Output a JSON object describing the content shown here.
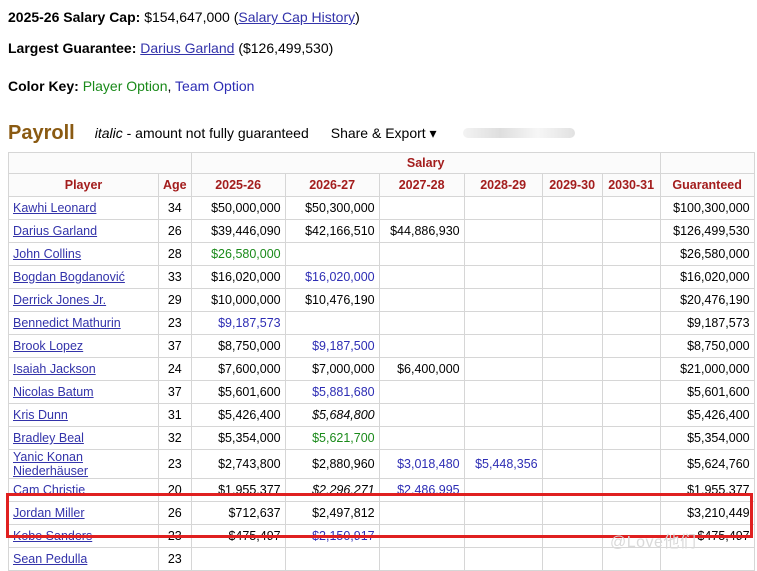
{
  "header": {
    "cap_label": "2025-26 Salary Cap:",
    "cap_value": "$154,647,000",
    "cap_open": "(",
    "cap_link": "Salary Cap History",
    "cap_close": ")",
    "largest_label": "Largest Guarantee:",
    "largest_player": "Darius Garland",
    "largest_value": "($126,499,530)",
    "color_key_label": "Color Key:",
    "player_option": "Player Option",
    "comma": ",",
    "team_option": "Team Option"
  },
  "payroll": {
    "title": "Payroll",
    "italic_word": "italic",
    "italic_rest": " - amount not fully guaranteed",
    "share_export": "Share & Export ▾"
  },
  "table": {
    "group_header": "Salary",
    "columns": [
      "Player",
      "Age",
      "2025-26",
      "2026-27",
      "2027-28",
      "2028-29",
      "2029-30",
      "2030-31",
      "Guaranteed"
    ],
    "rows": [
      {
        "player": "Kawhi Leonard",
        "age": "34",
        "y1": "$50,000,000",
        "y2": "$50,300,000",
        "y3": "",
        "y4": "",
        "guaranteed": "$100,300,000"
      },
      {
        "player": "Darius Garland",
        "age": "26",
        "y1": "$39,446,090",
        "y2": "$42,166,510",
        "y3": "$44,886,930",
        "y4": "",
        "guaranteed": "$126,499,530"
      },
      {
        "player": "John Collins",
        "age": "28",
        "y1": "$26,580,000",
        "y2": "",
        "y3": "",
        "y4": "",
        "guaranteed": "$26,580,000"
      },
      {
        "player": "Bogdan Bogdanović",
        "age": "33",
        "y1": "$16,020,000",
        "y2": "$16,020,000",
        "y3": "",
        "y4": "",
        "guaranteed": "$16,020,000"
      },
      {
        "player": "Derrick Jones Jr.",
        "age": "29",
        "y1": "$10,000,000",
        "y2": "$10,476,190",
        "y3": "",
        "y4": "",
        "guaranteed": "$20,476,190"
      },
      {
        "player": "Bennedict Mathurin",
        "age": "23",
        "y1": "$9,187,573",
        "y2": "",
        "y3": "",
        "y4": "",
        "guaranteed": "$9,187,573"
      },
      {
        "player": "Brook Lopez",
        "age": "37",
        "y1": "$8,750,000",
        "y2": "$9,187,500",
        "y3": "",
        "y4": "",
        "guaranteed": "$8,750,000"
      },
      {
        "player": "Isaiah Jackson",
        "age": "24",
        "y1": "$7,600,000",
        "y2": "$7,000,000",
        "y3": "$6,400,000",
        "y4": "",
        "guaranteed": "$21,000,000"
      },
      {
        "player": "Nicolas Batum",
        "age": "37",
        "y1": "$5,601,600",
        "y2": "$5,881,680",
        "y3": "",
        "y4": "",
        "guaranteed": "$5,601,600"
      },
      {
        "player": "Kris Dunn",
        "age": "31",
        "y1": "$5,426,400",
        "y2": "$5,684,800",
        "y3": "",
        "y4": "",
        "guaranteed": "$5,426,400"
      },
      {
        "player": "Bradley Beal",
        "age": "32",
        "y1": "$5,354,000",
        "y2": "$5,621,700",
        "y3": "",
        "y4": "",
        "guaranteed": "$5,354,000"
      },
      {
        "player": "Yanic Konan Niederhäuser",
        "age": "23",
        "y1": "$2,743,800",
        "y2": "$2,880,960",
        "y3": "$3,018,480",
        "y4": "$5,448,356",
        "guaranteed": "$5,624,760"
      },
      {
        "player": "Cam Christie",
        "age": "20",
        "y1": "$1,955,377",
        "y2": "$2,296,271",
        "y3": "$2,486,995",
        "y4": "",
        "guaranteed": "$1,955,377"
      },
      {
        "player": "Jordan Miller",
        "age": "26",
        "y1": "$712,637",
        "y2": "$2,497,812",
        "y3": "",
        "y4": "",
        "guaranteed": "$3,210,449"
      },
      {
        "player": "Kobe Sanders",
        "age": "23",
        "y1": "$475,497",
        "y2": "$2,150,917",
        "y3": "",
        "y4": "",
        "guaranteed": "$475,497"
      },
      {
        "player": "Sean Pedulla",
        "age": "23",
        "y1": "",
        "y2": "",
        "y3": "",
        "y4": "",
        "guaranteed": ""
      }
    ]
  },
  "styles": {
    "y1": [
      "",
      "",
      "green",
      "",
      "",
      "blue",
      "",
      "",
      "",
      "",
      "",
      "",
      "",
      "",
      "",
      ""
    ],
    "y2": [
      "",
      "",
      "",
      "blue",
      "",
      "",
      "blue",
      "",
      "blue",
      "it",
      "green",
      "",
      "it",
      "",
      "blue",
      ""
    ],
    "y3": [
      "",
      "",
      "",
      "",
      "",
      "",
      "",
      "",
      "",
      "",
      "",
      "blue",
      "blue",
      "",
      "",
      ""
    ],
    "y4": [
      "",
      "",
      "",
      "",
      "",
      "",
      "",
      "",
      "",
      "",
      "",
      "blue",
      "",
      "",
      "",
      ""
    ]
  },
  "watermark": "@Love他们",
  "colors": {
    "highlight": "#e02020",
    "team_option": "#2d2db4",
    "player_option": "#1a8a1a",
    "header_text": "#a31d1d",
    "payroll_title": "#8a5a12"
  }
}
